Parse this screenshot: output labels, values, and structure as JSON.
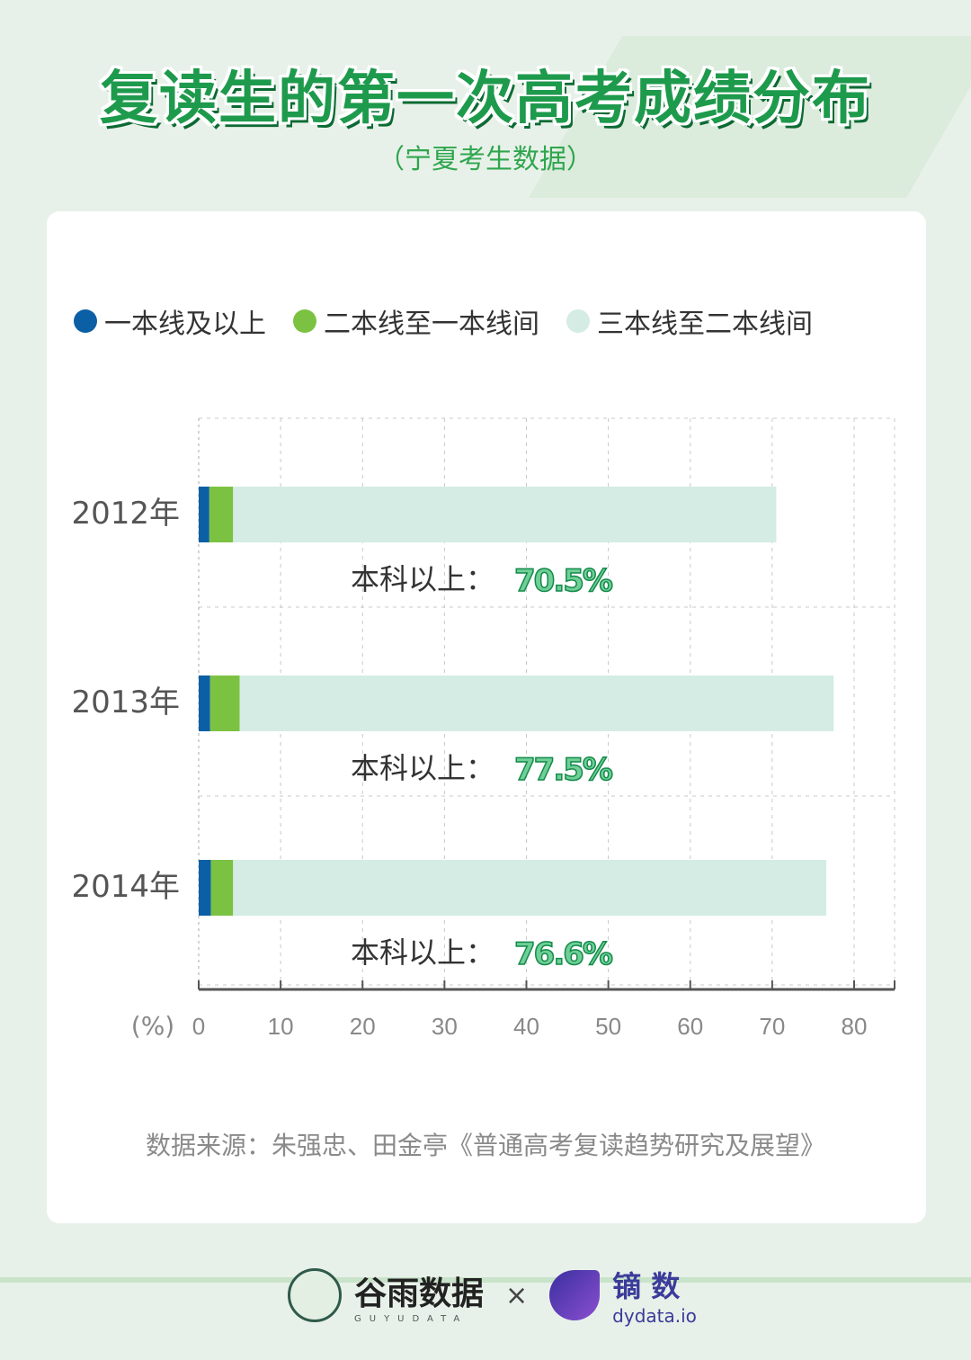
{
  "title": "复读生的第一次高考成绩分布",
  "subtitle": "（宁夏考生数据）",
  "legend": [
    {
      "label": "一本线及以上",
      "color": "#0b5fa5"
    },
    {
      "label": "二本线至一本线间",
      "color": "#7cc242"
    },
    {
      "label": "三本线至二本线间",
      "color": "#d4ece3"
    }
  ],
  "chart_data": {
    "type": "bar",
    "orientation": "horizontal",
    "stacked": true,
    "title": "复读生的第一次高考成绩分布",
    "xlabel": "(%)",
    "categories": [
      "2012年",
      "2013年",
      "2014年"
    ],
    "series": [
      {
        "name": "一本线及以上",
        "values": [
          1.3,
          1.4,
          1.5
        ]
      },
      {
        "name": "二本线至一本线间",
        "values": [
          2.9,
          3.6,
          2.7
        ]
      },
      {
        "name": "三本线至二本线间",
        "values": [
          66.3,
          72.5,
          72.4
        ]
      }
    ],
    "totals": [
      70.5,
      77.5,
      76.6
    ],
    "annotation_prefix": "本科以上：",
    "annotations": [
      "70.5%",
      "77.5%",
      "76.6%"
    ],
    "xlim": [
      0,
      85
    ],
    "xticks": [
      "0",
      "10",
      "20",
      "30",
      "40",
      "50",
      "60",
      "70",
      "80"
    ],
    "grid": true
  },
  "source": "数据来源：朱强忠、田金亭《普通高考复读趋势研究及展望》",
  "footer": {
    "brand1": "谷雨数据",
    "brand1_sub": "GUYUDATA",
    "times": "×",
    "brand2": "镝 数",
    "brand2_sub": "dydata.io"
  }
}
